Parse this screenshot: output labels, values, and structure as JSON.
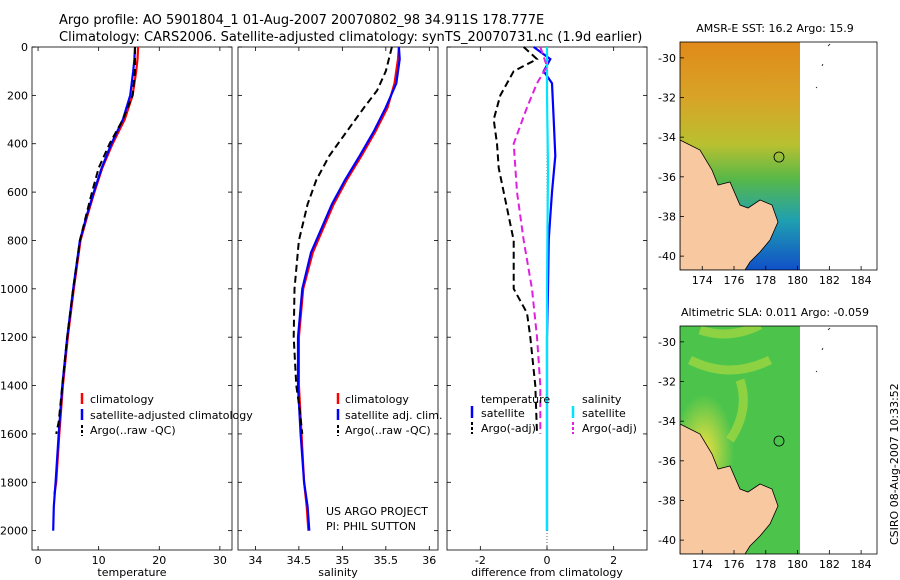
{
  "titles": {
    "line1": "Argo profile: AO 5901804_1 01-Aug-2007 20070802_98 34.911S 178.777E",
    "line2": "Climatology: CARS2006. Satellite-adjusted climatology: synTS_20070731.nc (1.9d earlier)"
  },
  "stamp": "CSIRO 08-Aug-2007 10:33:52",
  "colors": {
    "climatology": "#ff0000",
    "satellite": "#0000ff",
    "argo": "#000000",
    "satellite_salinity": "#00e5ff",
    "argo_salinity": "#e020e0",
    "land": "#f8c8a0"
  },
  "chart_data": [
    {
      "id": "temperature",
      "type": "line",
      "xlabel": "temperature",
      "ylabel": "",
      "xlim": [
        -1,
        32
      ],
      "ylim": [
        2080,
        0
      ],
      "xticks": [
        0,
        10,
        20,
        30
      ],
      "yticks": [
        0,
        200,
        400,
        600,
        800,
        1000,
        1200,
        1400,
        1600,
        1800,
        2000
      ],
      "legend": [
        "climatology",
        "satellite-adjusted climatology",
        "Argo(..raw -QC)"
      ],
      "series": [
        {
          "name": "climatology",
          "style": "solid",
          "color": "#ff0000",
          "x": [
            16.5,
            16.4,
            16.2,
            15.6,
            14.3,
            12.3,
            10.6,
            9.3,
            8.1,
            7.0,
            5.9,
            4.9,
            4.1,
            3.5,
            3.0,
            2.7
          ],
          "y": [
            0,
            50,
            100,
            200,
            300,
            400,
            500,
            600,
            700,
            800,
            1000,
            1200,
            1400,
            1600,
            1800,
            1850
          ]
        },
        {
          "name": "satellite-adjusted climatology",
          "style": "solid",
          "color": "#0000ff",
          "x": [
            16.0,
            15.9,
            15.7,
            15.2,
            14.0,
            12.1,
            10.5,
            9.2,
            8.0,
            6.9,
            5.8,
            4.8,
            4.0,
            3.4,
            2.9,
            2.6,
            2.5
          ],
          "y": [
            0,
            50,
            100,
            200,
            300,
            400,
            500,
            600,
            700,
            800,
            1000,
            1200,
            1400,
            1600,
            1800,
            1900,
            2000
          ]
        },
        {
          "name": "Argo(..raw -QC)",
          "style": "dashed",
          "color": "#000000",
          "x": [
            16.0,
            16.0,
            15.6,
            14.0,
            11.8,
            10.0,
            8.9,
            7.9,
            6.9,
            5.8,
            4.8,
            4.0,
            3.4,
            3.0
          ],
          "y": [
            0,
            100,
            200,
            300,
            400,
            500,
            600,
            700,
            800,
            1000,
            1200,
            1400,
            1550,
            1600
          ]
        }
      ]
    },
    {
      "id": "salinity",
      "type": "line",
      "xlabel": "salinity",
      "ylabel": "",
      "xlim": [
        33.8,
        36.1
      ],
      "ylim": [
        2080,
        0
      ],
      "xticks": [
        34,
        34.5,
        35,
        35.5,
        36
      ],
      "yticks": [
        0,
        200,
        400,
        600,
        800,
        1000,
        1200,
        1400,
        1600,
        1800,
        2000
      ],
      "legend": [
        "climatology",
        "satellite adj. clim.",
        "Argo(..raw -QC)"
      ],
      "annotation": [
        "US ARGO PROJECT",
        "PI: PHIL SUTTON"
      ],
      "series": [
        {
          "name": "climatology",
          "style": "solid",
          "color": "#ff0000",
          "x": [
            35.65,
            35.64,
            35.6,
            35.52,
            35.38,
            35.22,
            35.05,
            34.9,
            34.78,
            34.66,
            34.55,
            34.5,
            34.5,
            34.53,
            34.56,
            34.59,
            34.61
          ],
          "y": [
            0,
            50,
            150,
            250,
            350,
            450,
            550,
            650,
            750,
            850,
            1000,
            1200,
            1400,
            1600,
            1800,
            1900,
            2000
          ]
        },
        {
          "name": "satellite adj. clim.",
          "style": "solid",
          "color": "#0000ff",
          "x": [
            35.65,
            35.66,
            35.62,
            35.5,
            35.36,
            35.2,
            35.03,
            34.88,
            34.76,
            34.64,
            34.54,
            34.49,
            34.49,
            34.52,
            34.56,
            34.6,
            34.62
          ],
          "y": [
            0,
            50,
            150,
            250,
            350,
            450,
            550,
            650,
            750,
            850,
            1000,
            1200,
            1400,
            1600,
            1800,
            1900,
            2000
          ]
        },
        {
          "name": "Argo(..raw -QC)",
          "style": "dashed",
          "color": "#000000",
          "x": [
            35.57,
            35.5,
            35.4,
            35.25,
            35.05,
            34.85,
            34.7,
            34.6,
            34.5,
            34.45,
            34.44,
            34.47,
            34.51,
            34.54
          ],
          "y": [
            0,
            100,
            180,
            250,
            350,
            450,
            550,
            650,
            800,
            1000,
            1200,
            1400,
            1500,
            1600
          ]
        }
      ]
    },
    {
      "id": "difference",
      "type": "line",
      "xlabel": "difference from climatology",
      "ylabel": "",
      "xlim": [
        -3,
        3
      ],
      "ylim": [
        2080,
        0
      ],
      "xticks": [
        -2,
        0,
        2
      ],
      "yticks": [
        0,
        200,
        400,
        600,
        800,
        1000,
        1200,
        1400,
        1600,
        1800,
        2000
      ],
      "legend": [
        "temperature",
        "satellite",
        "Argo(-adj)",
        "salinity",
        "satellite",
        "Argo(-adj)"
      ],
      "series": [
        {
          "name": "temperature satellite",
          "style": "solid",
          "color": "#0000ff",
          "x": [
            -0.4,
            0.1,
            -0.1,
            0.15,
            0.2,
            0.25,
            0.15,
            0.1,
            0.05,
            0.03,
            0.0,
            0.0,
            0.0,
            0.0
          ],
          "y": [
            0,
            50,
            100,
            150,
            300,
            450,
            600,
            700,
            800,
            1000,
            1200,
            1400,
            1600,
            2000
          ]
        },
        {
          "name": "temperature Argo(-adj)",
          "style": "dashed",
          "color": "#000000",
          "x": [
            -0.7,
            -0.3,
            -1.0,
            -1.4,
            -1.6,
            -1.5,
            -1.45,
            -1.3,
            -1.0,
            -1.0,
            -0.6,
            -0.5,
            -0.35,
            -0.3
          ],
          "y": [
            0,
            50,
            100,
            200,
            300,
            400,
            500,
            600,
            800,
            1000,
            1100,
            1200,
            1400,
            1600
          ]
        },
        {
          "name": "salinity satellite",
          "style": "solid",
          "color": "#00e5ff",
          "x": [
            0.0,
            0.0,
            0.03,
            0.0,
            0.0
          ],
          "y": [
            0,
            200,
            500,
            1000,
            2000
          ]
        },
        {
          "name": "salinity Argo(-adj)",
          "style": "dashed",
          "color": "#e020e0",
          "x": [
            -0.2,
            0.0,
            -0.3,
            -0.6,
            -1.0,
            -0.9,
            -0.7,
            -0.45,
            -0.3,
            -0.25,
            -0.2,
            -0.2
          ],
          "y": [
            0,
            80,
            150,
            250,
            400,
            600,
            800,
            1000,
            1200,
            1300,
            1400,
            1600
          ]
        }
      ]
    },
    {
      "id": "sst-map",
      "type": "heatmap",
      "title": "AMSR-E SST: 16.2 Argo: 15.9",
      "xlim": [
        172.6,
        185
      ],
      "ylim": [
        -40.7,
        -29.2
      ],
      "xticks": [
        174,
        176,
        178,
        180,
        182,
        184
      ],
      "yticks": [
        -30,
        -32,
        -34,
        -36,
        -38,
        -40
      ],
      "profile_location": [
        178.777,
        -34.911
      ]
    },
    {
      "id": "sla-map",
      "type": "heatmap",
      "title": "Altimetric SLA: 0.011 Argo: -0.059",
      "xlim": [
        172.6,
        185
      ],
      "ylim": [
        -40.7,
        -29.2
      ],
      "xticks": [
        174,
        176,
        178,
        180,
        182,
        184
      ],
      "yticks": [
        -30,
        -32,
        -34,
        -36,
        -38,
        -40
      ],
      "profile_location": [
        178.777,
        -34.911
      ]
    }
  ]
}
